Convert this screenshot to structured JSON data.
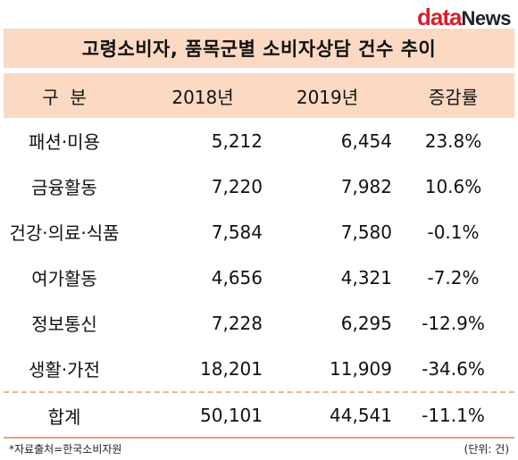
{
  "logo": {
    "data": "data",
    "news": "News"
  },
  "title": "고령소비자, 품목군별 소비자상담 건수 추이",
  "columns": [
    "구  분",
    "2018년",
    "2019년",
    "증감률"
  ],
  "rows": [
    {
      "category": "패션·미용",
      "y2018": "5,212",
      "y2019": "6,454",
      "change": "23.8%"
    },
    {
      "category": "금융활동",
      "y2018": "7,220",
      "y2019": "7,982",
      "change": "10.6%"
    },
    {
      "category": "건강·의료·식품",
      "y2018": "7,584",
      "y2019": "7,580",
      "change": "-0.1%"
    },
    {
      "category": "여가활동",
      "y2018": "4,656",
      "y2019": "4,321",
      "change": "-7.2%"
    },
    {
      "category": "정보통신",
      "y2018": "7,228",
      "y2019": "6,295",
      "change": "-12.9%"
    },
    {
      "category": "생활·가전",
      "y2018": "18,201",
      "y2019": "11,909",
      "change": "-34.6%"
    }
  ],
  "total": {
    "category": "합계",
    "y2018": "50,101",
    "y2019": "44,541",
    "change": "-11.1%"
  },
  "footer": {
    "source": "*자료출처=한국소비자원",
    "unit": "(단위: 건)"
  },
  "colors": {
    "header_bg": "#fbd9c3",
    "accent": "#d6202a",
    "separator": "#f4b28a"
  }
}
